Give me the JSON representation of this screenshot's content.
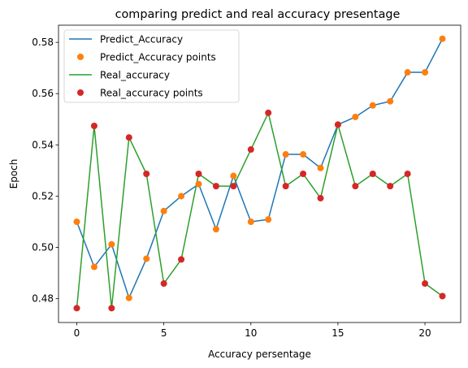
{
  "chart_data": {
    "type": "line",
    "title": "comparing predict and real accuracy presentage",
    "xlabel": "Accuracy persentage",
    "ylabel": "Epoch",
    "xlim": [
      -1.05,
      22.05
    ],
    "ylim": [
      0.4707,
      0.5867
    ],
    "xticks": [
      0,
      5,
      10,
      15,
      20
    ],
    "yticks": [
      0.48,
      0.5,
      0.52,
      0.54,
      0.56,
      0.58
    ],
    "ytick_labels": [
      "0.48",
      "0.50",
      "0.52",
      "0.54",
      "0.56",
      "0.58"
    ],
    "grid": false,
    "legend_position": "upper-left",
    "x": [
      0,
      1,
      2,
      3,
      4,
      5,
      6,
      7,
      8,
      9,
      10,
      11,
      12,
      13,
      14,
      15,
      16,
      17,
      18,
      19,
      20,
      21
    ],
    "series": [
      {
        "name": "Predict_Accuracy",
        "kind": "line",
        "color": "#1f77b4",
        "values": [
          0.51,
          0.4924,
          0.5012,
          0.4803,
          0.4956,
          0.5142,
          0.52,
          0.5247,
          0.5071,
          0.5279,
          0.51,
          0.5109,
          0.5363,
          0.5363,
          0.531,
          0.5479,
          0.5509,
          0.5554,
          0.557,
          0.5683,
          0.5683,
          0.5814
        ]
      },
      {
        "name": "Predict_Accuracy points",
        "kind": "points",
        "color": "#ff7f0e",
        "values": [
          0.51,
          0.4924,
          0.5012,
          0.4803,
          0.4956,
          0.5142,
          0.52,
          0.5247,
          0.5071,
          0.5279,
          0.51,
          0.5109,
          0.5363,
          0.5363,
          0.531,
          0.5479,
          0.5509,
          0.5554,
          0.557,
          0.5683,
          0.5683,
          0.5814
        ]
      },
      {
        "name": "Real_accuracy",
        "kind": "line",
        "color": "#2ca02c",
        "values": [
          0.4763,
          0.5474,
          0.4763,
          0.5429,
          0.5287,
          0.4859,
          0.4953,
          0.5287,
          0.5239,
          0.5239,
          0.5382,
          0.5525,
          0.5239,
          0.5287,
          0.5192,
          0.5479,
          0.5239,
          0.5287,
          0.5239,
          0.5287,
          0.4859,
          0.481
        ]
      },
      {
        "name": "Real_accuracy points",
        "kind": "points",
        "color": "#d62728",
        "values": [
          0.4763,
          0.5474,
          0.4763,
          0.5429,
          0.5287,
          0.4859,
          0.4953,
          0.5287,
          0.5239,
          0.5239,
          0.5382,
          0.5525,
          0.5239,
          0.5287,
          0.5192,
          0.5479,
          0.5239,
          0.5287,
          0.5239,
          0.5287,
          0.4859,
          0.481
        ]
      }
    ]
  }
}
